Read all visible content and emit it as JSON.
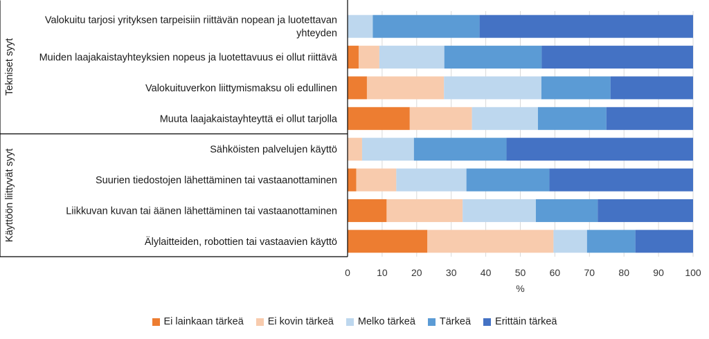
{
  "chart_data": {
    "type": "bar",
    "orientation": "horizontal",
    "stacked": true,
    "title": "",
    "xlabel": "%",
    "ylabel": "",
    "xlim": [
      0,
      100
    ],
    "xticks": [
      0,
      10,
      20,
      30,
      40,
      50,
      60,
      70,
      80,
      90,
      100
    ],
    "grid": "vertical",
    "legend_position": "bottom",
    "groups": [
      {
        "label": "Tekniset syyt",
        "categories": [
          0,
          1,
          2,
          3
        ]
      },
      {
        "label": "Käyttöön liittyvät syyt",
        "categories": [
          4,
          5,
          6,
          7
        ]
      }
    ],
    "categories": [
      [
        "Valokuitu tarjosi yrityksen tarpeisiin riittävän nopean ja luotettavan",
        "yhteyden"
      ],
      [
        "Muiden laajakaistayhteyksien nopeus ja luotettavuus ei ollut riittävä"
      ],
      [
        "Valokuituverkon liittymismaksu oli edullinen"
      ],
      [
        "Muuta laajakaistayhteyttä ei ollut tarjolla"
      ],
      [
        "Sähköisten palvelujen käyttö"
      ],
      [
        "Suurien tiedostojen lähettäminen tai vastaanottaminen"
      ],
      [
        "Liikkuvan kuvan tai äänen lähettäminen tai vastaanottaminen"
      ],
      [
        "Älylaitteiden, robottien tai vastaavien käyttö"
      ]
    ],
    "series": [
      {
        "name": "Ei lainkaan tärkeä",
        "color": "#ED7D31",
        "values": [
          0,
          3.2,
          5.6,
          18.0,
          0,
          2.5,
          11.3,
          23.1
        ]
      },
      {
        "name": "Ei kovin tärkeä",
        "color": "#F8CBAD",
        "values": [
          0,
          6.0,
          22.3,
          18.0,
          4.2,
          11.6,
          22.0,
          36.5
        ]
      },
      {
        "name": "Melko tärkeä",
        "color": "#BDD7EE",
        "values": [
          7.3,
          18.8,
          28.2,
          19.1,
          15.0,
          20.3,
          21.2,
          9.7
        ]
      },
      {
        "name": "Tärkeä",
        "color": "#5B9BD5",
        "values": [
          30.9,
          28.2,
          20.0,
          19.8,
          26.8,
          24.0,
          17.9,
          14.0
        ]
      },
      {
        "name": "Erittäin tärkeä",
        "color": "#4472C4",
        "values": [
          61.8,
          43.8,
          23.9,
          25.1,
          54.0,
          41.6,
          27.6,
          16.7
        ]
      }
    ]
  }
}
